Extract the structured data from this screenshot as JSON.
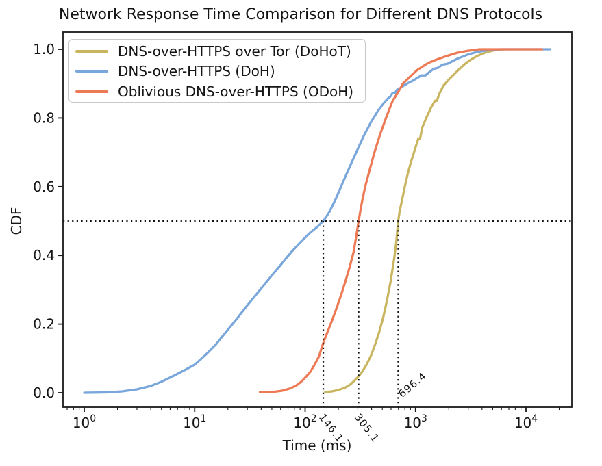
{
  "figure": {
    "title": "Network Response Time Comparison for Different DNS Protocols",
    "xlabel": "Time (ms)",
    "ylabel": "CDF",
    "background_color": "#ffffff",
    "axis_color": "#1a1a1a"
  },
  "axes": {
    "x": {
      "scale": "log",
      "limits": [
        0.64,
        26000
      ],
      "ticks": [
        {
          "value": 1,
          "base": "10",
          "exp": "0"
        },
        {
          "value": 10,
          "base": "10",
          "exp": "1"
        },
        {
          "value": 100,
          "base": "10",
          "exp": "2"
        },
        {
          "value": 1000,
          "base": "10",
          "exp": "3"
        },
        {
          "value": 10000,
          "base": "10",
          "exp": "4"
        }
      ]
    },
    "y": {
      "scale": "linear",
      "limits": [
        -0.042,
        1.05
      ],
      "ticks": [
        {
          "value": 0.0,
          "label": "0.0"
        },
        {
          "value": 0.2,
          "label": "0.2"
        },
        {
          "value": 0.4,
          "label": "0.4"
        },
        {
          "value": 0.6,
          "label": "0.6"
        },
        {
          "value": 0.8,
          "label": "0.8"
        },
        {
          "value": 1.0,
          "label": "1.0"
        }
      ]
    }
  },
  "legend": {
    "position": "upper left",
    "items": [
      {
        "label": "DNS-over-HTTPS over Tor (DoHoT)",
        "color": "#c9b560"
      },
      {
        "label": "DNS-over-HTTPS (DoH)",
        "color": "#79a6db"
      },
      {
        "label": "Oblivious DNS-over-HTTPS (ODoH)",
        "color": "#ed7a55"
      }
    ]
  },
  "medians": {
    "guide_color": "#111111",
    "horizontal_cdf_level": 0.5,
    "values": [
      {
        "label": "146.1",
        "t_ms": 146.1,
        "series": "DNS-over-HTTPS (DoH)",
        "label_placement": "below-axis"
      },
      {
        "label": "305.1",
        "t_ms": 305.1,
        "series": "Oblivious DNS-over-HTTPS (ODoH)",
        "label_placement": "below-axis"
      },
      {
        "label": "696.4",
        "t_ms": 696.4,
        "series": "DNS-over-HTTPS over Tor (DoHoT)",
        "label_placement": "above-axis"
      }
    ]
  },
  "chart_data": {
    "type": "line",
    "subtype": "cdf",
    "title": "Network Response Time Comparison for Different DNS Protocols",
    "xlabel": "Time (ms)",
    "ylabel": "CDF",
    "x_scale": "log",
    "x_axis_limits_ms": [
      0.64,
      26000
    ],
    "y_axis_limits": [
      -0.042,
      1.05
    ],
    "grid": false,
    "legend_position": "upper left",
    "median_guides": {
      "cdf_level": 0.5,
      "values_ms": [
        146.1,
        305.1,
        696.4
      ]
    },
    "series": [
      {
        "name": "DNS-over-HTTPS over Tor (DoHoT)",
        "color": "#c9b560",
        "median_ms": 696.4,
        "points": [
          [
            152,
            0.002
          ],
          [
            175,
            0.004
          ],
          [
            200,
            0.008
          ],
          [
            230,
            0.015
          ],
          [
            258,
            0.025
          ],
          [
            285,
            0.038
          ],
          [
            305,
            0.048
          ],
          [
            330,
            0.062
          ],
          [
            360,
            0.082
          ],
          [
            395,
            0.108
          ],
          [
            430,
            0.14
          ],
          [
            470,
            0.178
          ],
          [
            510,
            0.22
          ],
          [
            550,
            0.268
          ],
          [
            595,
            0.325
          ],
          [
            640,
            0.39
          ],
          [
            670,
            0.44
          ],
          [
            696.4,
            0.5
          ],
          [
            720,
            0.53
          ],
          [
            760,
            0.565
          ],
          [
            800,
            0.6
          ],
          [
            850,
            0.638
          ],
          [
            910,
            0.672
          ],
          [
            980,
            0.705
          ],
          [
            1060,
            0.74
          ],
          [
            1100,
            0.74
          ],
          [
            1150,
            0.772
          ],
          [
            1250,
            0.8
          ],
          [
            1370,
            0.828
          ],
          [
            1500,
            0.85
          ],
          [
            1560,
            0.85
          ],
          [
            1650,
            0.872
          ],
          [
            1800,
            0.895
          ],
          [
            2000,
            0.912
          ],
          [
            2200,
            0.925
          ],
          [
            2450,
            0.94
          ],
          [
            2750,
            0.955
          ],
          [
            3100,
            0.968
          ],
          [
            3500,
            0.978
          ],
          [
            3950,
            0.986
          ],
          [
            4450,
            0.992
          ],
          [
            5000,
            0.996
          ],
          [
            5700,
            0.999
          ],
          [
            6500,
            1.0
          ]
        ]
      },
      {
        "name": "DNS-over-HTTPS (DoH)",
        "color": "#79a6db",
        "median_ms": 146.1,
        "points": [
          [
            1,
            0.0
          ],
          [
            1.6,
            0.001
          ],
          [
            2.2,
            0.004
          ],
          [
            3,
            0.01
          ],
          [
            4,
            0.02
          ],
          [
            5,
            0.032
          ],
          [
            6.5,
            0.05
          ],
          [
            8,
            0.065
          ],
          [
            10,
            0.082
          ],
          [
            12.5,
            0.11
          ],
          [
            15.5,
            0.14
          ],
          [
            19,
            0.175
          ],
          [
            24,
            0.215
          ],
          [
            30,
            0.255
          ],
          [
            38,
            0.295
          ],
          [
            48,
            0.335
          ],
          [
            60,
            0.372
          ],
          [
            75,
            0.41
          ],
          [
            90,
            0.437
          ],
          [
            110,
            0.465
          ],
          [
            130,
            0.484
          ],
          [
            146.1,
            0.5
          ],
          [
            165,
            0.525
          ],
          [
            190,
            0.565
          ],
          [
            220,
            0.613
          ],
          [
            255,
            0.66
          ],
          [
            295,
            0.705
          ],
          [
            340,
            0.748
          ],
          [
            395,
            0.788
          ],
          [
            455,
            0.82
          ],
          [
            520,
            0.845
          ],
          [
            560,
            0.856
          ],
          [
            590,
            0.862
          ],
          [
            620,
            0.873
          ],
          [
            650,
            0.873
          ],
          [
            680,
            0.882
          ],
          [
            720,
            0.886
          ],
          [
            790,
            0.895
          ],
          [
            860,
            0.902
          ],
          [
            940,
            0.908
          ],
          [
            1030,
            0.916
          ],
          [
            1130,
            0.924
          ],
          [
            1230,
            0.924
          ],
          [
            1340,
            0.934
          ],
          [
            1460,
            0.943
          ],
          [
            1600,
            0.946
          ],
          [
            1750,
            0.955
          ],
          [
            1950,
            0.958
          ],
          [
            2150,
            0.965
          ],
          [
            2400,
            0.973
          ],
          [
            2700,
            0.979
          ],
          [
            3000,
            0.985
          ],
          [
            3400,
            0.99
          ],
          [
            3900,
            0.994
          ],
          [
            4500,
            0.997
          ],
          [
            5200,
            0.999
          ],
          [
            6000,
            1.0
          ],
          [
            9000,
            1.0
          ],
          [
            16500,
            1.0
          ]
        ]
      },
      {
        "name": "Oblivious DNS-over-HTTPS (ODoH)",
        "color": "#ed7a55",
        "median_ms": 305.1,
        "points": [
          [
            39,
            0.002
          ],
          [
            50,
            0.002
          ],
          [
            62,
            0.006
          ],
          [
            72,
            0.012
          ],
          [
            82,
            0.02
          ],
          [
            92,
            0.032
          ],
          [
            102,
            0.047
          ],
          [
            112,
            0.062
          ],
          [
            122,
            0.082
          ],
          [
            133,
            0.105
          ],
          [
            146.1,
            0.145
          ],
          [
            160,
            0.178
          ],
          [
            175,
            0.21
          ],
          [
            192,
            0.245
          ],
          [
            212,
            0.285
          ],
          [
            232,
            0.325
          ],
          [
            255,
            0.37
          ],
          [
            275,
            0.41
          ],
          [
            290,
            0.455
          ],
          [
            305.1,
            0.5
          ],
          [
            325,
            0.55
          ],
          [
            350,
            0.6
          ],
          [
            385,
            0.65
          ],
          [
            425,
            0.7
          ],
          [
            475,
            0.75
          ],
          [
            540,
            0.8
          ],
          [
            620,
            0.85
          ],
          [
            680,
            0.87
          ],
          [
            770,
            0.9
          ],
          [
            890,
            0.92
          ],
          [
            1040,
            0.94
          ],
          [
            1300,
            0.96
          ],
          [
            1550,
            0.97
          ],
          [
            1900,
            0.98
          ],
          [
            2400,
            0.99
          ],
          [
            2900,
            0.995
          ],
          [
            3800,
            1.0
          ],
          [
            6000,
            1.0
          ],
          [
            14000,
            1.0
          ]
        ]
      }
    ]
  }
}
